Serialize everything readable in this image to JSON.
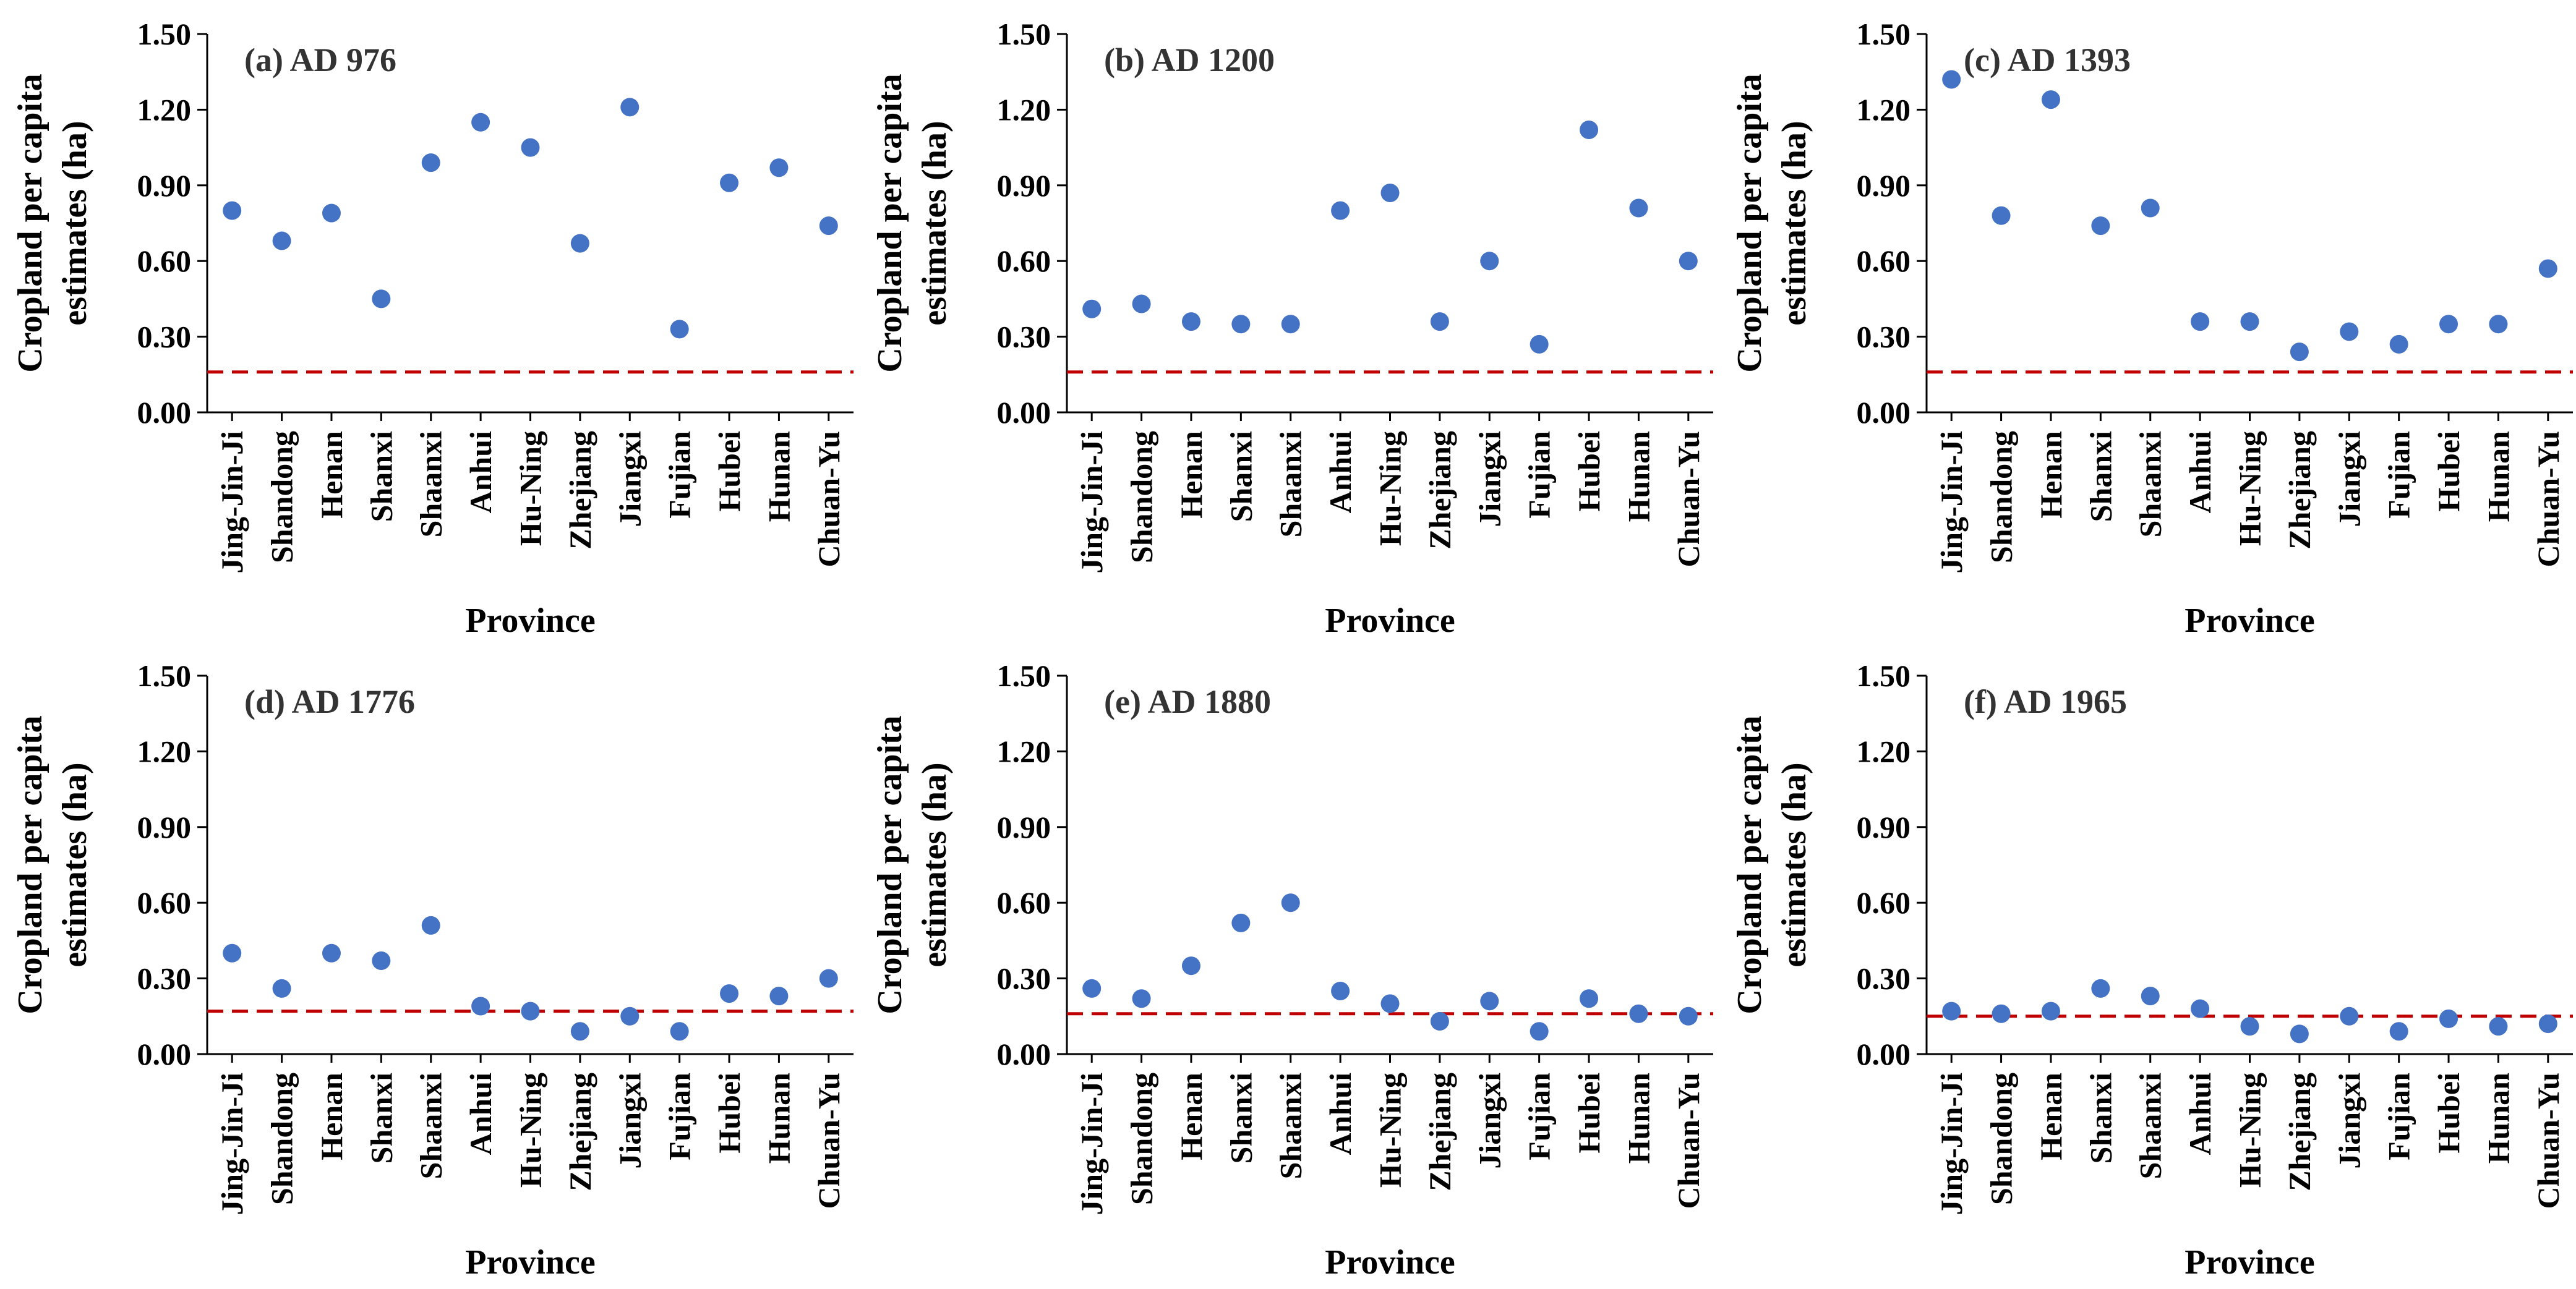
{
  "colors": {
    "point": "#4472C4",
    "threshold": "#C00000",
    "axis": "#000000"
  },
  "chart_data": [
    {
      "type": "scatter",
      "title": "(a) AD 976",
      "xlabel": "Province",
      "ylabel": [
        "Cropland per capita",
        "estimates (ha)"
      ],
      "categories": [
        "Jing-Jin-Ji",
        "Shandong",
        "Henan",
        "Shanxi",
        "Shaanxi",
        "Anhui",
        "Hu-Ning",
        "Zhejiang",
        "Jiangxi",
        "Fujian",
        "Hubei",
        "Hunan",
        "Chuan-Yu"
      ],
      "values": [
        0.8,
        0.68,
        0.79,
        0.45,
        0.99,
        1.15,
        1.05,
        0.67,
        1.21,
        0.33,
        0.91,
        0.97,
        0.74
      ],
      "threshold": 0.16,
      "ylim": [
        0,
        1.5
      ],
      "yticks": [
        "0.00",
        "0.30",
        "0.60",
        "0.90",
        "1.20",
        "1.50"
      ],
      "grid": false
    },
    {
      "type": "scatter",
      "title": "(b) AD 1200",
      "xlabel": "Province",
      "ylabel": [
        "Cropland per capita",
        "estimates (ha)"
      ],
      "categories": [
        "Jing-Jin-Ji",
        "Shandong",
        "Henan",
        "Shanxi",
        "Shaanxi",
        "Anhui",
        "Hu-Ning",
        "Zhejiang",
        "Jiangxi",
        "Fujian",
        "Hubei",
        "Hunan",
        "Chuan-Yu"
      ],
      "values": [
        0.41,
        0.43,
        0.36,
        0.35,
        0.35,
        0.8,
        0.87,
        0.36,
        0.6,
        0.27,
        1.12,
        0.81,
        0.6
      ],
      "threshold": 0.16,
      "ylim": [
        0,
        1.5
      ],
      "yticks": [
        "0.00",
        "0.30",
        "0.60",
        "0.90",
        "1.20",
        "1.50"
      ],
      "grid": false
    },
    {
      "type": "scatter",
      "title": "(c) AD 1393",
      "xlabel": "Province",
      "ylabel": [
        "Cropland per capita",
        "estimates (ha)"
      ],
      "categories": [
        "Jing-Jin-Ji",
        "Shandong",
        "Henan",
        "Shanxi",
        "Shaanxi",
        "Anhui",
        "Hu-Ning",
        "Zhejiang",
        "Jiangxi",
        "Fujian",
        "Hubei",
        "Hunan",
        "Chuan-Yu"
      ],
      "values": [
        1.32,
        0.78,
        1.24,
        0.74,
        0.81,
        0.36,
        0.36,
        0.24,
        0.32,
        0.27,
        0.35,
        0.35,
        0.57
      ],
      "threshold": 0.16,
      "ylim": [
        0,
        1.5
      ],
      "yticks": [
        "0.00",
        "0.30",
        "0.60",
        "0.90",
        "1.20",
        "1.50"
      ],
      "grid": false
    },
    {
      "type": "scatter",
      "title": "(d) AD 1776",
      "xlabel": "Province",
      "ylabel": [
        "Cropland per capita",
        "estimates (ha)"
      ],
      "categories": [
        "Jing-Jin-Ji",
        "Shandong",
        "Henan",
        "Shanxi",
        "Shaanxi",
        "Anhui",
        "Hu-Ning",
        "Zhejiang",
        "Jiangxi",
        "Fujian",
        "Hubei",
        "Hunan",
        "Chuan-Yu"
      ],
      "values": [
        0.4,
        0.26,
        0.4,
        0.37,
        0.51,
        0.19,
        0.17,
        0.09,
        0.15,
        0.09,
        0.24,
        0.23,
        0.3
      ],
      "threshold": 0.17,
      "ylim": [
        0,
        1.5
      ],
      "yticks": [
        "0.00",
        "0.30",
        "0.60",
        "0.90",
        "1.20",
        "1.50"
      ],
      "grid": false
    },
    {
      "type": "scatter",
      "title": "(e) AD 1880",
      "xlabel": "Province",
      "ylabel": [
        "Cropland per capita",
        "estimates (ha)"
      ],
      "categories": [
        "Jing-Jin-Ji",
        "Shandong",
        "Henan",
        "Shanxi",
        "Shaanxi",
        "Anhui",
        "Hu-Ning",
        "Zhejiang",
        "Jiangxi",
        "Fujian",
        "Hubei",
        "Hunan",
        "Chuan-Yu"
      ],
      "values": [
        0.26,
        0.22,
        0.35,
        0.52,
        0.6,
        0.25,
        0.2,
        0.13,
        0.21,
        0.09,
        0.22,
        0.16,
        0.15
      ],
      "threshold": 0.16,
      "ylim": [
        0,
        1.5
      ],
      "yticks": [
        "0.00",
        "0.30",
        "0.60",
        "0.90",
        "1.20",
        "1.50"
      ],
      "grid": false
    },
    {
      "type": "scatter",
      "title": "(f) AD 1965",
      "xlabel": "Province",
      "ylabel": [
        "Cropland per capita",
        "estimates (ha)"
      ],
      "categories": [
        "Jing-Jin-Ji",
        "Shandong",
        "Henan",
        "Shanxi",
        "Shaanxi",
        "Anhui",
        "Hu-Ning",
        "Zhejiang",
        "Jiangxi",
        "Fujian",
        "Hubei",
        "Hunan",
        "Chuan-Yu"
      ],
      "values": [
        0.17,
        0.16,
        0.17,
        0.26,
        0.23,
        0.18,
        0.11,
        0.08,
        0.15,
        0.09,
        0.14,
        0.11,
        0.12
      ],
      "threshold": 0.15,
      "ylim": [
        0,
        1.5
      ],
      "yticks": [
        "0.00",
        "0.30",
        "0.60",
        "0.90",
        "1.20",
        "1.50"
      ],
      "grid": false
    }
  ]
}
